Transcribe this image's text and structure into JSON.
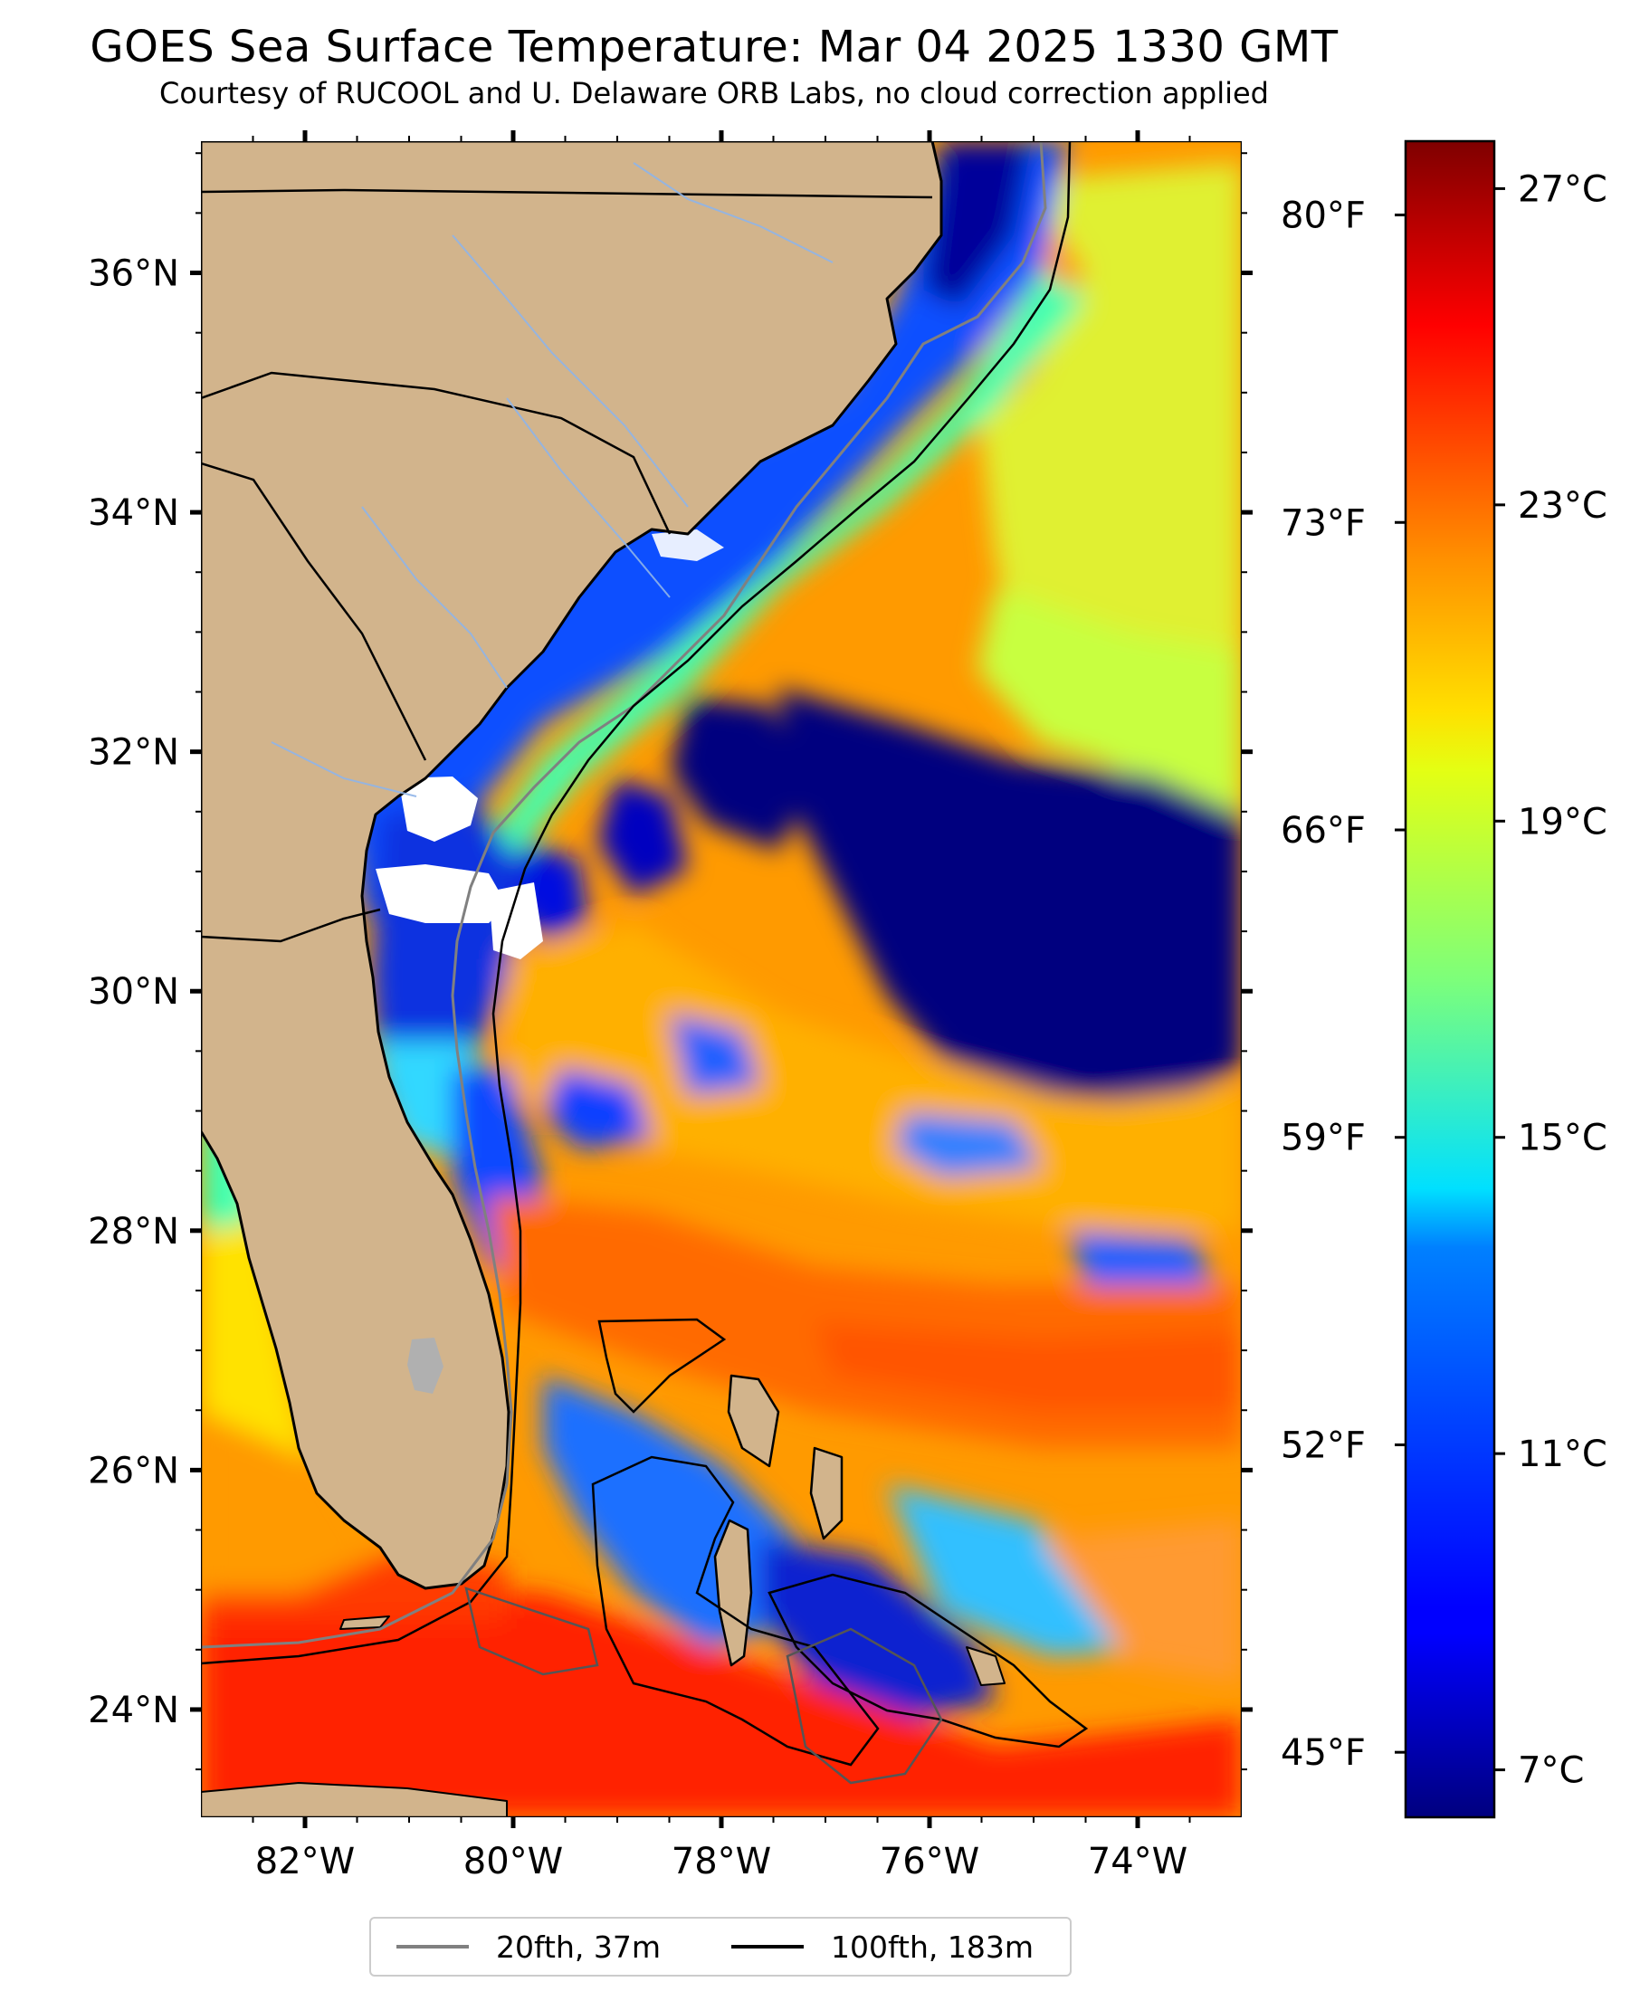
{
  "title": "GOES Sea Surface Temperature: Mar 04 2025 1330 GMT",
  "subtitle": "Courtesy of RUCOOL and U. Delaware ORB Labs, no cloud correction applied",
  "map": {
    "lon_range": [
      -83,
      -73
    ],
    "lat_range": [
      23.1,
      37.1
    ],
    "lat_ticks": [
      {
        "value": 36,
        "label": "36°N"
      },
      {
        "value": 34,
        "label": "34°N"
      },
      {
        "value": 32,
        "label": "32°N"
      },
      {
        "value": 30,
        "label": "30°N"
      },
      {
        "value": 28,
        "label": "28°N"
      },
      {
        "value": 26,
        "label": "26°N"
      },
      {
        "value": 24,
        "label": "24°N"
      }
    ],
    "lon_ticks": [
      {
        "value": -82,
        "label": "82°W"
      },
      {
        "value": -80,
        "label": "80°W"
      },
      {
        "value": -78,
        "label": "78°W"
      },
      {
        "value": -76,
        "label": "76°W"
      },
      {
        "value": -74,
        "label": "74°W"
      }
    ],
    "land_color": "#d2b48c",
    "cloud_mask_color": "#ffffff"
  },
  "colorbar": {
    "colormap": "jet",
    "celsius_range": [
      6.4,
      27.6
    ],
    "fahrenheit_ticks": [
      {
        "value": 80,
        "label": "80°F"
      },
      {
        "value": 73,
        "label": "73°F"
      },
      {
        "value": 66,
        "label": "66°F"
      },
      {
        "value": 59,
        "label": "59°F"
      },
      {
        "value": 52,
        "label": "52°F"
      },
      {
        "value": 45,
        "label": "45°F"
      }
    ],
    "celsius_ticks": [
      {
        "value": 27,
        "label": "27°C"
      },
      {
        "value": 23,
        "label": "23°C"
      },
      {
        "value": 19,
        "label": "19°C"
      },
      {
        "value": 15,
        "label": "15°C"
      },
      {
        "value": 11,
        "label": "11°C"
      },
      {
        "value": 7,
        "label": "7°C"
      }
    ]
  },
  "legend": [
    {
      "label": "20fth, 37m",
      "color": "#808080"
    },
    {
      "label": "100fth, 183m",
      "color": "#000000"
    }
  ]
}
